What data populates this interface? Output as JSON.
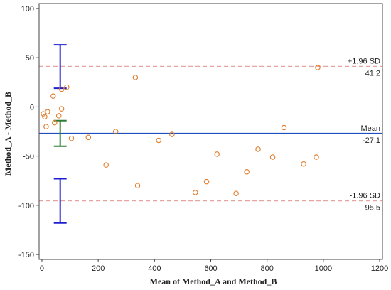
{
  "chart_data": {
    "type": "scatter",
    "title": "",
    "xlabel": "Mean of Method_A and Method_B",
    "ylabel": "Method_A - Method_B",
    "xlim": [
      -10,
      1210
    ],
    "ylim": [
      -155,
      105
    ],
    "xticks": [
      0,
      200,
      400,
      600,
      800,
      1000,
      1200
    ],
    "yticks": [
      -150,
      -100,
      -50,
      0,
      50,
      100
    ],
    "grid": false,
    "points": [
      {
        "x": 5,
        "y": -7
      },
      {
        "x": 10,
        "y": -10
      },
      {
        "x": 15,
        "y": -20
      },
      {
        "x": 20,
        "y": -5
      },
      {
        "x": 40,
        "y": 11
      },
      {
        "x": 45,
        "y": -16
      },
      {
        "x": 60,
        "y": -9
      },
      {
        "x": 70,
        "y": 18
      },
      {
        "x": 70,
        "y": -2
      },
      {
        "x": 88,
        "y": 20
      },
      {
        "x": 105,
        "y": -32
      },
      {
        "x": 165,
        "y": -31
      },
      {
        "x": 228,
        "y": -59
      },
      {
        "x": 262,
        "y": -25
      },
      {
        "x": 332,
        "y": 30
      },
      {
        "x": 340,
        "y": -80
      },
      {
        "x": 415,
        "y": -34
      },
      {
        "x": 462,
        "y": -28
      },
      {
        "x": 545,
        "y": -87
      },
      {
        "x": 585,
        "y": -76
      },
      {
        "x": 622,
        "y": -48
      },
      {
        "x": 690,
        "y": -88
      },
      {
        "x": 728,
        "y": -66
      },
      {
        "x": 768,
        "y": -43
      },
      {
        "x": 820,
        "y": -51
      },
      {
        "x": 860,
        "y": -21
      },
      {
        "x": 930,
        "y": -58
      },
      {
        "x": 975,
        "y": -51
      },
      {
        "x": 980,
        "y": 40
      }
    ],
    "reference_lines": [
      {
        "id": "upper",
        "y": 41.2,
        "label_top": "+1.96 SD",
        "label_bottom": "41.2",
        "style": "dashed",
        "color": "#e8a3a3"
      },
      {
        "id": "mean",
        "y": -27.1,
        "label_top": "Mean",
        "label_bottom": "-27.1",
        "style": "solid",
        "color": "#1f4fbf"
      },
      {
        "id": "lower",
        "y": -95.5,
        "label_top": "-1.96 SD",
        "label_bottom": "-95.5",
        "style": "dashed",
        "color": "#e8a3a3"
      }
    ],
    "confidence_intervals": [
      {
        "id": "upper-ci",
        "x": 65,
        "low": 19,
        "high": 63,
        "color": "#1f1fd0"
      },
      {
        "id": "mean-ci",
        "x": 65,
        "low": -40,
        "high": -14,
        "color": "#2e7d32"
      },
      {
        "id": "lower-ci",
        "x": 65,
        "low": -118,
        "high": -73,
        "color": "#1f1fd0"
      }
    ],
    "marker_color": "#e07b2a"
  }
}
